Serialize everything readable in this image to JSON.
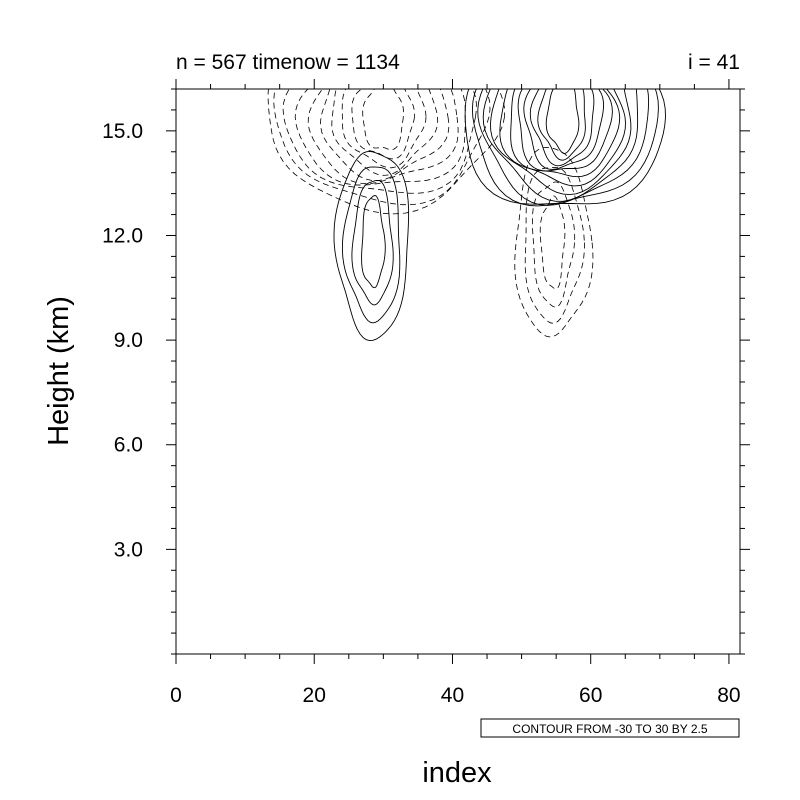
{
  "chart_data": {
    "type": "contour",
    "title_left": "n = 567 timenow = 1134",
    "title_right": "i = 41",
    "xlabel": "index",
    "ylabel": "Height (km)",
    "xlim": [
      0,
      81.6
    ],
    "ylim": [
      0,
      16.2
    ],
    "x_ticks": [
      0,
      20,
      40,
      60,
      80
    ],
    "x_tick_labels": [
      "0",
      "20",
      "40",
      "60",
      "80"
    ],
    "y_ticks": [
      3,
      6,
      9,
      12,
      15
    ],
    "y_tick_labels": [
      "3.0",
      "6.0",
      "9.0",
      "12.0",
      "15.0"
    ],
    "contour_info": "CONTOUR FROM -30 TO 30 BY 2.5",
    "contour_min": -30,
    "contour_max": 30,
    "contour_interval": 2.5,
    "negative_contours": "dashed",
    "cells": [
      {
        "sign": "negative",
        "x_center": 30,
        "y_center": 15.4,
        "x_half_width": 17,
        "y_half_height": 2.6,
        "max_level": 24,
        "top_open": true
      },
      {
        "sign": "positive",
        "x_center": 56,
        "y_center": 15.4,
        "x_half_width": 14.5,
        "y_half_height": 2.7,
        "max_level": 30,
        "top_open": true
      },
      {
        "sign": "positive",
        "x_center": 28.5,
        "y_center": 11.8,
        "x_half_width": 5.3,
        "y_half_height": 2.7,
        "max_level": 10
      },
      {
        "sign": "negative",
        "x_center": 54.5,
        "y_center": 11.8,
        "x_half_width": 5.5,
        "y_half_height": 2.7,
        "max_level": 10
      }
    ]
  }
}
